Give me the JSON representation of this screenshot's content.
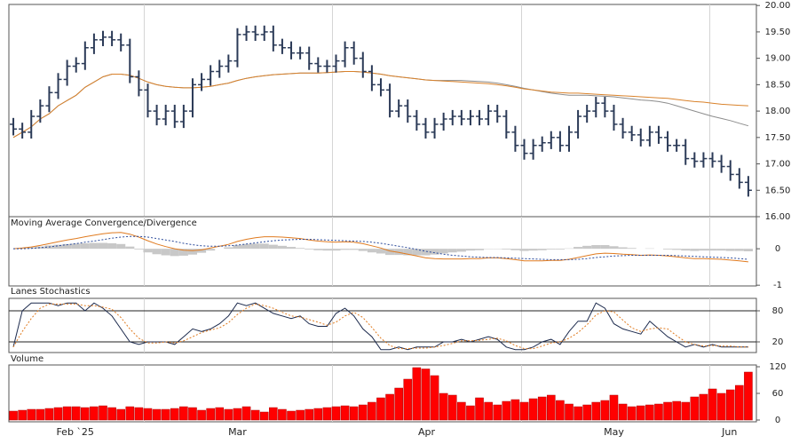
{
  "chart_data": [
    {
      "type": "ohlc",
      "color": "#2b3a57",
      "open": [
        17.75,
        17.66,
        17.6,
        17.9,
        18.1,
        18.35,
        18.6,
        18.85,
        18.9,
        19.2,
        19.35,
        19.4,
        19.35,
        19.25,
        18.65,
        18.4,
        18.0,
        17.85,
        18.0,
        17.8,
        18.0,
        18.5,
        18.6,
        18.75,
        18.85,
        18.95,
        19.45,
        19.5,
        19.45,
        19.5,
        19.25,
        19.2,
        19.1,
        19.1,
        18.9,
        18.85,
        18.85,
        18.95,
        19.2,
        19.0,
        18.75,
        18.5,
        18.4,
        18.0,
        18.1,
        17.9,
        17.75,
        17.6,
        17.75,
        17.85,
        17.9,
        17.85,
        17.9,
        17.85,
        18.0,
        17.9,
        17.6,
        17.35,
        17.2,
        17.35,
        17.4,
        17.5,
        17.35,
        17.6,
        17.9,
        18.0,
        18.15,
        18.0,
        17.75,
        17.6,
        17.55,
        17.45,
        17.6,
        17.5,
        17.35,
        17.35,
        17.1,
        17.05,
        17.1,
        17.05,
        16.95,
        16.8,
        16.65
      ],
      "high": [
        17.87,
        17.78,
        18.02,
        18.22,
        18.47,
        18.72,
        18.97,
        19.02,
        19.32,
        19.47,
        19.52,
        19.52,
        19.47,
        19.37,
        18.77,
        18.52,
        18.12,
        18.12,
        18.12,
        18.12,
        18.62,
        18.72,
        18.87,
        18.97,
        19.07,
        19.57,
        19.62,
        19.62,
        19.62,
        19.62,
        19.37,
        19.32,
        19.22,
        19.22,
        19.02,
        18.97,
        19.07,
        19.32,
        19.32,
        19.12,
        18.87,
        18.62,
        18.52,
        18.22,
        18.22,
        18.02,
        17.87,
        17.87,
        17.97,
        18.02,
        18.02,
        18.02,
        18.02,
        18.12,
        18.12,
        18.02,
        17.72,
        17.47,
        17.47,
        17.52,
        17.62,
        17.62,
        17.72,
        18.02,
        18.12,
        18.27,
        18.27,
        18.12,
        17.87,
        17.72,
        17.67,
        17.72,
        17.72,
        17.62,
        17.47,
        17.47,
        17.22,
        17.22,
        17.22,
        17.17,
        17.07,
        16.92,
        16.77
      ],
      "low": [
        17.54,
        17.48,
        17.48,
        17.78,
        17.98,
        18.23,
        18.48,
        18.73,
        18.78,
        19.08,
        19.23,
        19.23,
        19.13,
        18.53,
        18.28,
        17.88,
        17.73,
        17.73,
        17.68,
        17.68,
        17.88,
        18.38,
        18.48,
        18.63,
        18.73,
        18.83,
        19.33,
        19.33,
        19.33,
        19.13,
        19.08,
        18.98,
        18.98,
        18.78,
        18.73,
        18.73,
        18.73,
        18.83,
        18.88,
        18.63,
        18.38,
        18.28,
        17.88,
        17.88,
        17.78,
        17.63,
        17.48,
        17.48,
        17.63,
        17.73,
        17.73,
        17.73,
        17.73,
        17.73,
        17.78,
        17.48,
        17.23,
        17.08,
        17.08,
        17.23,
        17.28,
        17.23,
        17.23,
        17.48,
        17.78,
        17.88,
        17.88,
        17.63,
        17.48,
        17.43,
        17.33,
        17.33,
        17.38,
        17.23,
        17.23,
        16.98,
        16.93,
        16.93,
        16.93,
        16.83,
        16.68,
        16.53,
        16.38
      ],
      "close": [
        17.66,
        17.6,
        17.9,
        18.1,
        18.35,
        18.6,
        18.85,
        18.9,
        19.2,
        19.35,
        19.4,
        19.35,
        19.25,
        18.65,
        18.4,
        18.0,
        17.85,
        18.0,
        17.8,
        18.0,
        18.5,
        18.6,
        18.75,
        18.85,
        18.95,
        19.45,
        19.5,
        19.45,
        19.5,
        19.25,
        19.2,
        19.1,
        19.1,
        18.9,
        18.85,
        18.85,
        18.95,
        19.2,
        19.0,
        18.75,
        18.5,
        18.4,
        18.0,
        18.1,
        17.9,
        17.75,
        17.6,
        17.75,
        17.85,
        17.9,
        17.85,
        17.9,
        17.85,
        18.0,
        17.9,
        17.6,
        17.35,
        17.2,
        17.35,
        17.4,
        17.5,
        17.35,
        17.6,
        17.9,
        18.0,
        18.15,
        18.0,
        17.75,
        17.6,
        17.55,
        17.45,
        17.6,
        17.5,
        17.35,
        17.35,
        17.1,
        17.05,
        17.1,
        17.05,
        16.95,
        16.8,
        16.65,
        16.5
      ],
      "series": [
        {
          "color": "#8c8c8c",
          "values": [
            17.5,
            17.6,
            17.7,
            17.85,
            17.95,
            18.1,
            18.2,
            18.3,
            18.45,
            18.55,
            18.65,
            18.7,
            18.7,
            18.68,
            18.62,
            18.55,
            18.5,
            18.47,
            18.45,
            18.44,
            18.44,
            18.45,
            18.47,
            18.5,
            18.53,
            18.58,
            18.62,
            18.65,
            18.67,
            18.69,
            18.7,
            18.71,
            18.72,
            18.72,
            18.72,
            18.73,
            18.74,
            18.75,
            18.75,
            18.74,
            18.72,
            18.7,
            18.67,
            18.65,
            18.63,
            18.61,
            18.59,
            18.58,
            18.58,
            18.58,
            18.58,
            18.57,
            18.56,
            18.55,
            18.53,
            18.5,
            18.47,
            18.43,
            18.4,
            18.37,
            18.34,
            18.32,
            18.3,
            18.3,
            18.3,
            18.29,
            18.28,
            18.27,
            18.25,
            18.23,
            18.21,
            18.2,
            18.18,
            18.15,
            18.1,
            18.05,
            18.0,
            17.95,
            17.9,
            17.86,
            17.82,
            17.77,
            17.72
          ]
        },
        {
          "color": "#d9822b",
          "values": [
            17.5,
            17.6,
            17.7,
            17.85,
            17.95,
            18.1,
            18.2,
            18.3,
            18.45,
            18.55,
            18.65,
            18.7,
            18.7,
            18.68,
            18.62,
            18.55,
            18.5,
            18.47,
            18.45,
            18.44,
            18.44,
            18.45,
            18.47,
            18.5,
            18.53,
            18.58,
            18.62,
            18.65,
            18.67,
            18.69,
            18.7,
            18.71,
            18.72,
            18.72,
            18.72,
            18.73,
            18.74,
            18.75,
            18.75,
            18.74,
            18.72,
            18.7,
            18.67,
            18.65,
            18.63,
            18.61,
            18.59,
            18.58,
            18.57,
            18.56,
            18.55,
            18.54,
            18.53,
            18.52,
            18.5,
            18.48,
            18.45,
            18.42,
            18.4,
            18.38,
            18.36,
            18.35,
            18.34,
            18.34,
            18.33,
            18.32,
            18.31,
            18.3,
            18.29,
            18.28,
            18.27,
            18.26,
            18.25,
            18.24,
            18.22,
            18.2,
            18.18,
            18.17,
            18.15,
            18.13,
            18.12,
            18.11,
            18.1
          ]
        }
      ],
      "ylim": [
        16,
        20.02
      ],
      "yticks": [
        {
          "value": 16,
          "label": "16.00"
        },
        {
          "value": 16.5,
          "label": "16.50"
        },
        {
          "value": 17,
          "label": "17.00"
        },
        {
          "value": 17.5,
          "label": "17.50"
        },
        {
          "value": 18,
          "label": "18.00"
        },
        {
          "value": 18.5,
          "label": "18.50"
        },
        {
          "value": 19,
          "label": "19.00"
        },
        {
          "value": 19.5,
          "label": "19.50"
        },
        {
          "value": 20,
          "label": "20.00"
        }
      ],
      "xlim": [
        -0.5,
        82.9
      ],
      "xgrid": [
        14.6,
        35.6,
        56.7,
        77.7
      ]
    },
    {
      "type": "macd",
      "title": "Moving Average Convergence/Divergence",
      "histogram": {
        "color": "#c8c8c8",
        "values": [
          0,
          0.02,
          0.04,
          0.06,
          0.09,
          0.11,
          0.13,
          0.14,
          0.15,
          0.16,
          0.16,
          0.15,
          0.13,
          0.06,
          -0.02,
          -0.1,
          -0.15,
          -0.18,
          -0.2,
          -0.19,
          -0.16,
          -0.11,
          -0.05,
          0,
          0.04,
          0.1,
          0.13,
          0.14,
          0.14,
          0.11,
          0.08,
          0.05,
          0.02,
          -0.02,
          -0.04,
          -0.05,
          -0.05,
          -0.03,
          -0.03,
          -0.06,
          -0.1,
          -0.13,
          -0.17,
          -0.17,
          -0.18,
          -0.18,
          -0.18,
          -0.16,
          -0.13,
          -0.1,
          -0.08,
          -0.05,
          -0.04,
          -0.01,
          -0.01,
          -0.02,
          -0.04,
          -0.06,
          -0.05,
          -0.04,
          -0.02,
          -0.02,
          0.01,
          0.05,
          0.08,
          0.1,
          0.1,
          0.07,
          0.04,
          0.02,
          0,
          0.01,
          0,
          -0.02,
          -0.03,
          -0.05,
          -0.06,
          -0.05,
          -0.05,
          -0.05,
          -0.06,
          -0.06,
          -0.07
        ]
      },
      "series": [
        {
          "color": "#e07b20",
          "dashed": false,
          "values": [
            0,
            0.02,
            0.05,
            0.09,
            0.14,
            0.19,
            0.24,
            0.28,
            0.33,
            0.37,
            0.41,
            0.44,
            0.45,
            0.4,
            0.32,
            0.22,
            0.13,
            0.06,
            0,
            -0.04,
            -0.05,
            -0.03,
            0.02,
            0.07,
            0.12,
            0.2,
            0.26,
            0.3,
            0.33,
            0.33,
            0.32,
            0.3,
            0.28,
            0.24,
            0.21,
            0.19,
            0.18,
            0.19,
            0.18,
            0.14,
            0.08,
            0.02,
            -0.06,
            -0.1,
            -0.15,
            -0.2,
            -0.25,
            -0.27,
            -0.28,
            -0.28,
            -0.28,
            -0.27,
            -0.27,
            -0.25,
            -0.25,
            -0.27,
            -0.3,
            -0.33,
            -0.33,
            -0.33,
            -0.32,
            -0.32,
            -0.29,
            -0.24,
            -0.19,
            -0.14,
            -0.12,
            -0.13,
            -0.15,
            -0.16,
            -0.18,
            -0.17,
            -0.18,
            -0.2,
            -0.22,
            -0.25,
            -0.27,
            -0.27,
            -0.28,
            -0.29,
            -0.31,
            -0.33,
            -0.36
          ]
        },
        {
          "color": "#2b4a9a",
          "dashed": true,
          "values": [
            0,
            0,
            0.01,
            0.03,
            0.05,
            0.08,
            0.11,
            0.14,
            0.18,
            0.21,
            0.25,
            0.29,
            0.32,
            0.34,
            0.34,
            0.32,
            0.28,
            0.24,
            0.2,
            0.15,
            0.11,
            0.08,
            0.07,
            0.07,
            0.08,
            0.1,
            0.13,
            0.16,
            0.19,
            0.22,
            0.24,
            0.25,
            0.26,
            0.26,
            0.25,
            0.24,
            0.23,
            0.22,
            0.21,
            0.2,
            0.18,
            0.15,
            0.11,
            0.07,
            0.03,
            -0.02,
            -0.07,
            -0.11,
            -0.15,
            -0.18,
            -0.2,
            -0.22,
            -0.23,
            -0.24,
            -0.24,
            -0.25,
            -0.26,
            -0.27,
            -0.28,
            -0.29,
            -0.3,
            -0.3,
            -0.3,
            -0.29,
            -0.27,
            -0.24,
            -0.22,
            -0.2,
            -0.19,
            -0.18,
            -0.18,
            -0.18,
            -0.18,
            -0.18,
            -0.19,
            -0.2,
            -0.21,
            -0.22,
            -0.23,
            -0.24,
            -0.25,
            -0.27,
            -0.29
          ]
        }
      ],
      "ylim": [
        -1.02,
        0.88
      ],
      "yticks": [
        -1,
        0
      ],
      "xlim": [
        -0.5,
        82.9
      ],
      "xgrid": [
        14.6,
        35.6,
        56.7,
        77.7
      ]
    },
    {
      "type": "stochastic",
      "title": "Lanes Stochastics",
      "series": [
        {
          "color": "#1c2a4d",
          "dashed": false,
          "values": [
            10,
            80,
            95,
            95,
            95,
            90,
            95,
            95,
            80,
            95,
            85,
            70,
            45,
            20,
            15,
            20,
            20,
            20,
            15,
            30,
            45,
            40,
            45,
            55,
            70,
            95,
            90,
            95,
            85,
            75,
            70,
            65,
            70,
            55,
            50,
            50,
            75,
            85,
            70,
            45,
            30,
            5,
            5,
            10,
            5,
            10,
            10,
            10,
            20,
            20,
            25,
            20,
            25,
            30,
            25,
            10,
            5,
            5,
            10,
            20,
            25,
            15,
            40,
            60,
            60,
            95,
            85,
            55,
            45,
            40,
            35,
            60,
            45,
            30,
            20,
            10,
            15,
            10,
            15,
            10,
            10,
            10,
            10
          ]
        },
        {
          "color": "#e07b20",
          "dashed": true,
          "values": [
            10,
            40,
            65,
            85,
            93,
            93,
            93,
            93,
            90,
            90,
            87,
            83,
            67,
            45,
            27,
            18,
            18,
            20,
            18,
            22,
            30,
            38,
            43,
            47,
            57,
            73,
            85,
            93,
            90,
            85,
            77,
            70,
            68,
            63,
            58,
            52,
            58,
            70,
            77,
            67,
            48,
            27,
            13,
            7,
            7,
            8,
            8,
            10,
            13,
            17,
            22,
            22,
            23,
            25,
            27,
            22,
            13,
            7,
            7,
            12,
            18,
            20,
            27,
            38,
            53,
            72,
            80,
            78,
            62,
            47,
            40,
            45,
            47,
            45,
            32,
            20,
            15,
            12,
            13,
            12,
            12,
            10,
            10
          ]
        }
      ],
      "ylim": [
        -0.6,
        104
      ],
      "yticks": [
        20,
        80
      ],
      "grid": true,
      "xlim": [
        -0.5,
        82.9
      ],
      "xgrid": [
        14.6,
        35.6,
        56.7,
        77.7
      ]
    },
    {
      "type": "volume",
      "title": "Volume",
      "color": "#ff0000",
      "values": [
        20,
        22,
        24,
        24,
        26,
        28,
        30,
        30,
        28,
        30,
        32,
        28,
        24,
        30,
        28,
        26,
        24,
        24,
        26,
        30,
        28,
        22,
        26,
        28,
        24,
        26,
        30,
        22,
        18,
        28,
        24,
        20,
        22,
        24,
        26,
        28,
        30,
        32,
        30,
        34,
        40,
        50,
        58,
        72,
        92,
        118,
        115,
        100,
        60,
        56,
        40,
        32,
        50,
        40,
        34,
        42,
        46,
        40,
        48,
        52,
        56,
        44,
        36,
        30,
        34,
        40,
        44,
        56,
        36,
        30,
        32,
        34,
        36,
        40,
        42,
        40,
        52,
        58,
        70,
        60,
        68,
        78,
        108
      ],
      "ylim": [
        -4,
        124
      ],
      "yticks": [
        0,
        60,
        120
      ],
      "xlim": [
        -0.5,
        82.9
      ],
      "xgrid": [
        14.6,
        35.6,
        56.7,
        77.7
      ],
      "xticks": [
        {
          "value": 6.9,
          "label": "Feb `25"
        },
        {
          "value": 25,
          "label": "Mar"
        },
        {
          "value": 46.1,
          "label": "Apr"
        },
        {
          "value": 67,
          "label": "May"
        },
        {
          "value": 79.9,
          "label": "Jun"
        }
      ]
    }
  ]
}
